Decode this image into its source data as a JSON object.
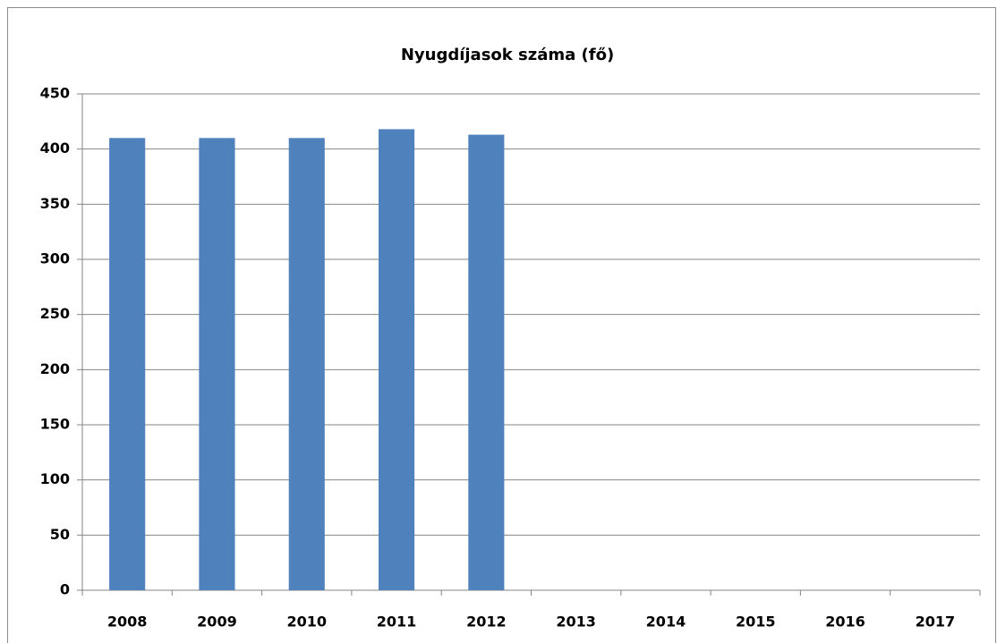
{
  "chart_data": {
    "type": "bar",
    "title": "Nyugdíjasok száma (fő)",
    "categories": [
      "2008",
      "2009",
      "2010",
      "2011",
      "2012",
      "2013",
      "2014",
      "2015",
      "2016",
      "2017"
    ],
    "values": [
      410,
      410,
      410,
      418,
      413,
      null,
      null,
      null,
      null,
      null
    ],
    "color": "#4f81bd",
    "ylim": [
      0,
      450
    ],
    "yticks": [
      0,
      50,
      100,
      150,
      200,
      250,
      300,
      350,
      400,
      450
    ],
    "grid": true
  }
}
